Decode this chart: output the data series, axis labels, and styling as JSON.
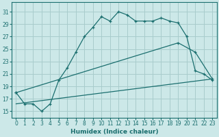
{
  "xlabel": "Humidex (Indice chaleur)",
  "bg_color": "#cce8e8",
  "grid_color": "#a8cccc",
  "line_color": "#1a6e6e",
  "xlim": [
    -0.5,
    23.5
  ],
  "ylim": [
    14.0,
    32.5
  ],
  "xticks": [
    0,
    1,
    2,
    3,
    4,
    5,
    6,
    7,
    8,
    9,
    10,
    11,
    12,
    13,
    14,
    15,
    16,
    17,
    18,
    19,
    20,
    21,
    22,
    23
  ],
  "yticks": [
    15,
    17,
    19,
    21,
    23,
    25,
    27,
    29,
    31
  ],
  "main_x": [
    0,
    1,
    2,
    3,
    4,
    5,
    6,
    7,
    8,
    9,
    10,
    11,
    12,
    13,
    14,
    15,
    16,
    17,
    18,
    19,
    20,
    21,
    22,
    23
  ],
  "main_y": [
    18.0,
    16.2,
    16.2,
    15.0,
    16.2,
    20.0,
    22.0,
    24.5,
    27.0,
    28.5,
    30.2,
    29.5,
    31.0,
    30.5,
    29.5,
    29.5,
    29.5,
    30.0,
    29.5,
    29.2,
    27.0,
    21.5,
    21.0,
    20.0
  ],
  "line2_x": [
    0,
    19,
    21,
    23
  ],
  "line2_y": [
    18.0,
    26.0,
    24.5,
    20.2
  ],
  "line3_x": [
    0,
    23
  ],
  "line3_y": [
    16.2,
    20.2
  ]
}
